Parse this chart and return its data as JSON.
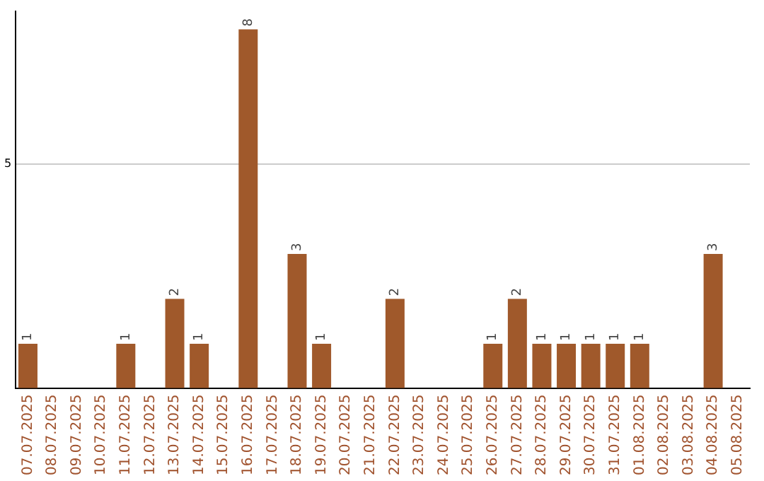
{
  "chart_data": {
    "type": "bar",
    "categories": [
      "07.07.2025",
      "08.07.2025",
      "09.07.2025",
      "10.07.2025",
      "11.07.2025",
      "12.07.2025",
      "13.07.2025",
      "14.07.2025",
      "15.07.2025",
      "16.07.2025",
      "17.07.2025",
      "18.07.2025",
      "19.07.2025",
      "20.07.2025",
      "21.07.2025",
      "22.07.2025",
      "23.07.2025",
      "24.07.2025",
      "25.07.2025",
      "26.07.2025",
      "27.07.2025",
      "28.07.2025",
      "29.07.2025",
      "30.07.2025",
      "31.07.2025",
      "01.08.2025",
      "02.08.2025",
      "03.08.2025",
      "04.08.2025",
      "05.08.2025"
    ],
    "values": [
      1,
      0,
      0,
      0,
      1,
      0,
      2,
      1,
      0,
      8,
      0,
      3,
      1,
      0,
      0,
      2,
      0,
      0,
      0,
      1,
      2,
      1,
      1,
      1,
      1,
      1,
      0,
      0,
      3,
      0
    ],
    "value_labels": [
      "1",
      null,
      null,
      null,
      "1",
      null,
      "2",
      "1",
      null,
      "8",
      null,
      "3",
      "1",
      null,
      null,
      "2",
      null,
      null,
      null,
      "1",
      "2",
      "1",
      "1",
      "1",
      "1",
      "1",
      null,
      null,
      "3",
      null
    ],
    "color": "#a0592b",
    "ylim": [
      0,
      8.4
    ],
    "yticks": [
      {
        "value": 0,
        "label": null
      },
      5
    ],
    "grid": "y",
    "legend": false
  }
}
